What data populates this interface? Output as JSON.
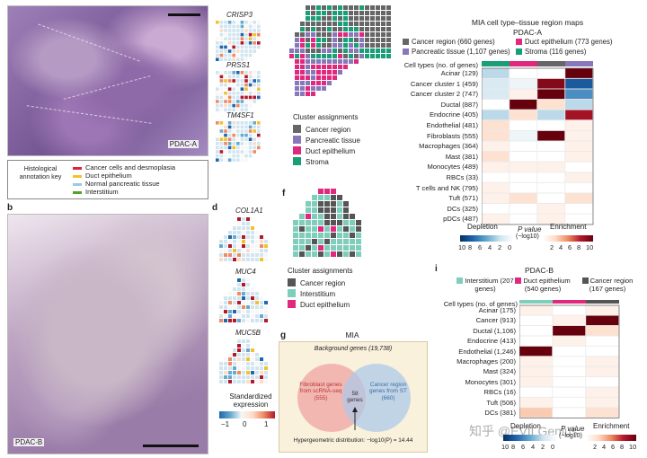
{
  "panel_letters": {
    "b": "b",
    "d": "d",
    "f": "f",
    "g": "g",
    "i": "i"
  },
  "histology_a": {
    "label": "PDAC-A"
  },
  "histology_b": {
    "label": "PDAC-B"
  },
  "annotation_key": {
    "title": "Histological annotation key",
    "items": [
      {
        "label": "Cancer cells and desmoplasia",
        "color": "#d7263d"
      },
      {
        "label": "Duct epithelium",
        "color": "#f2c12e"
      },
      {
        "label": "Normal pancreatic tissue",
        "color": "#9ecae1"
      },
      {
        "label": "Interstitium",
        "color": "#5aa02c"
      }
    ]
  },
  "genes_top": [
    "CRISP3",
    "PRSS1",
    "TM4SF1"
  ],
  "genes_d": [
    "COL1A1",
    "MUC4",
    "MUC5B"
  ],
  "expression_legend": {
    "title": "Standardized expression",
    "ticks": [
      "−1",
      "0",
      "1"
    ]
  },
  "cluster_legend_e": {
    "title": "Cluster assignments",
    "items": [
      {
        "label": "Cancer region",
        "color": "#666666"
      },
      {
        "label": "Pancreatic tissue",
        "color": "#8877bb"
      },
      {
        "label": "Duct epithelium",
        "color": "#e0297e"
      },
      {
        "label": "Stroma",
        "color": "#1a9e77"
      }
    ]
  },
  "cluster_legend_f": {
    "title": "Cluster assignments",
    "items": [
      {
        "label": "Cancer region",
        "color": "#555555"
      },
      {
        "label": "Interstitium",
        "color": "#7fcdbb"
      },
      {
        "label": "Duct epithelium",
        "color": "#e0297e"
      }
    ]
  },
  "mia_a": {
    "title": "MIA cell type–tissue region maps",
    "subtitle": "PDAC-A",
    "regions": [
      {
        "label": "Cancer region (660 genes)",
        "color": "#666666"
      },
      {
        "label": "Duct epithelium (773 genes)",
        "color": "#e0297e"
      },
      {
        "label": "Pancreatic tissue (1,107 genes)",
        "color": "#8877bb"
      },
      {
        "label": "Stroma (116 genes)",
        "color": "#1a9e77"
      }
    ],
    "rows_header": "Cell types (no. of genes)",
    "rows": [
      "Acinar (129)",
      "Cancer cluster 1 (459)",
      "Cancer cluster 2 (747)",
      "Ductal (887)",
      "Endocrine (405)",
      "Endothelial (481)",
      "Fibroblasts (555)",
      "Macrophages (364)",
      "Mast (381)",
      "Monocytes (489)",
      "RBCs (33)",
      "T cells and NK (795)",
      "Tuft (571)",
      "DCs (325)",
      "pDCs (487)"
    ],
    "column_colors": [
      "#1a9e77",
      "#e0297e",
      "#666666",
      "#8877bb"
    ],
    "heatmap": [
      [
        -3,
        0,
        0,
        10
      ],
      [
        -2,
        -1,
        9,
        -8
      ],
      [
        -2,
        1,
        10,
        -6
      ],
      [
        0,
        10,
        2,
        -3
      ],
      [
        -3,
        2,
        -3,
        8
      ],
      [
        2,
        0,
        0,
        1
      ],
      [
        2,
        -1,
        10,
        1
      ],
      [
        1,
        0,
        0,
        1
      ],
      [
        2,
        0,
        0,
        1
      ],
      [
        1,
        1,
        1,
        0
      ],
      [
        0,
        0,
        0,
        1
      ],
      [
        1,
        0,
        0,
        0
      ],
      [
        1,
        2,
        0,
        2
      ],
      [
        0,
        0,
        1,
        0
      ],
      [
        1,
        0,
        1,
        0
      ]
    ]
  },
  "mia_b": {
    "subtitle": "PDAC-B",
    "regions": [
      {
        "label": "Interstitium (207 genes)",
        "color": "#7fcdbb"
      },
      {
        "label": "Duct epithelium (540 genes)",
        "color": "#e0297e"
      },
      {
        "label": "Cancer region (167 genes)",
        "color": "#555555"
      }
    ],
    "rows_header": "Cell types (no. of genes)",
    "rows": [
      "Acinar (175)",
      "Cancer (913)",
      "Ductal (1,106)",
      "Endocrine (413)",
      "Endothelial (1,246)",
      "Macrophages (200)",
      "Mast (324)",
      "Monocytes (301)",
      "RBCs (16)",
      "Tuft (506)",
      "DCs (381)"
    ],
    "heatmap": [
      [
        1,
        0,
        1
      ],
      [
        0,
        1,
        10
      ],
      [
        0,
        10,
        2
      ],
      [
        0,
        1,
        0
      ],
      [
        10,
        0,
        0
      ],
      [
        1,
        0,
        1
      ],
      [
        1,
        0,
        1
      ],
      [
        1,
        0,
        0
      ],
      [
        0,
        0,
        1
      ],
      [
        1,
        0,
        1
      ],
      [
        3,
        0,
        2
      ]
    ]
  },
  "pvalue_legend_a": {
    "depletion": "Depletion",
    "enrichment": "Enrichment",
    "label": "P value",
    "sublabel": "(−log10)",
    "left_ticks": [
      "10",
      "8",
      "6",
      "4",
      "2",
      "0"
    ],
    "right_ticks": [
      "2",
      "4",
      "6",
      "8",
      "10"
    ]
  },
  "pvalue_legend_b": {
    "depletion": "Depletion",
    "enrichment": "Enrichment",
    "label": "P value",
    "sublabel": "(−log10)",
    "left_ticks": [
      "10",
      "8",
      "6",
      "4",
      "2",
      "0"
    ],
    "right_ticks": [
      "2",
      "4",
      "6",
      "8",
      "10"
    ]
  },
  "venn": {
    "title": "MIA",
    "background": "Background genes (19,738)",
    "left": "Fibroblast genes from scRNA-seq (555)",
    "middle": "58 genes",
    "right": "Cancer region genes from ST (660)",
    "footer": "Hypergeometric distribution: −log10(P) = 14.44",
    "left_color": "#f0a3a3",
    "right_color": "#a9c8ea"
  },
  "watermark": "知乎 @EVILGenius"
}
